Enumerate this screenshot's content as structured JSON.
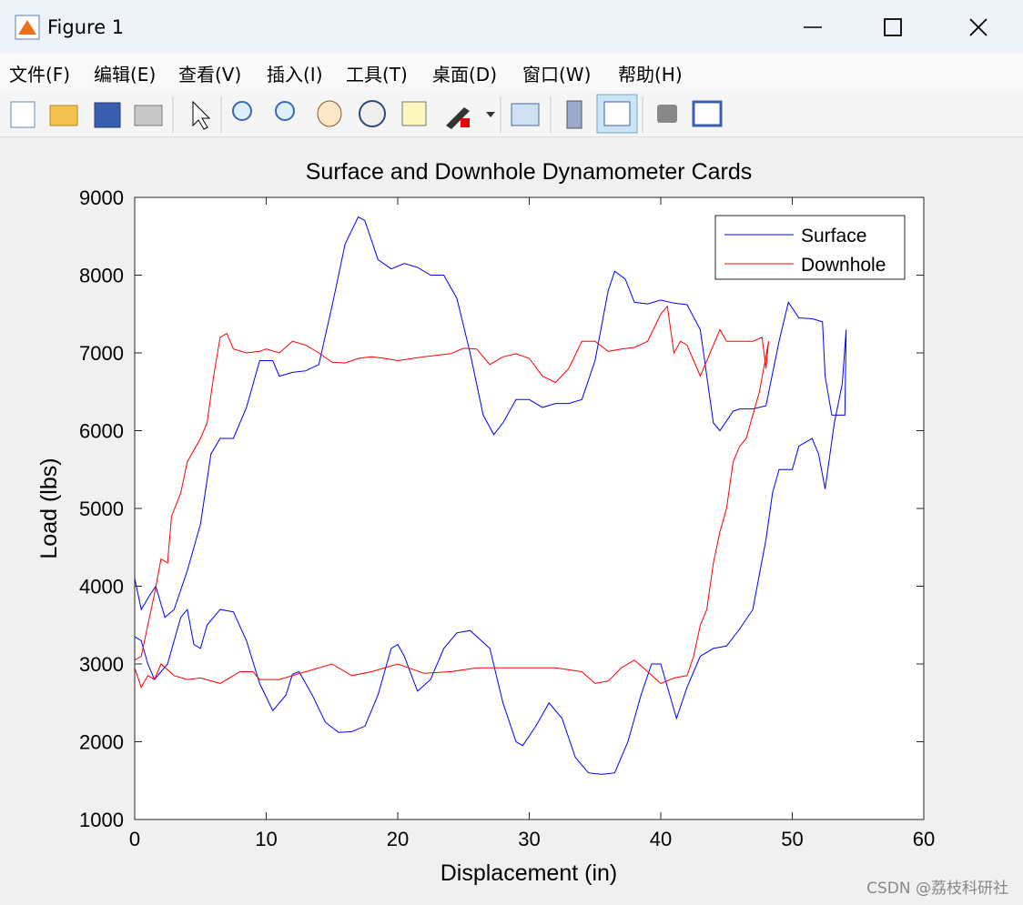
{
  "window": {
    "title": "Figure 1",
    "menu": [
      "文件(F)",
      "编辑(E)",
      "查看(V)",
      "插入(I)",
      "工具(T)",
      "桌面(D)",
      "窗口(W)",
      "帮助(H)"
    ]
  },
  "watermark": "CSDN @荔枝科研社",
  "chart_data": {
    "type": "line",
    "title": "Surface and Downhole Dynamometer Cards",
    "x_label": "Displacement (in)",
    "y_label": "Load (lbs)",
    "xlim": [
      0,
      60
    ],
    "xticks": [
      0,
      10,
      20,
      30,
      40,
      50,
      60
    ],
    "ylim": [
      1000,
      9000
    ],
    "yticks": [
      1000,
      2000,
      3000,
      4000,
      5000,
      6000,
      7000,
      8000,
      9000
    ],
    "grid": false,
    "legend": "upper right",
    "series": [
      {
        "name": "Surface",
        "color": "#0000ff",
        "x": [
          0,
          0.5,
          1.2,
          1.6,
          2.3,
          3,
          4,
          5,
          5.8,
          6.5,
          7.5,
          8.5,
          9.5,
          10.5,
          11,
          12,
          13,
          14,
          15,
          16,
          17,
          17.5,
          18.5,
          19.5,
          20.5,
          21.5,
          22.5,
          23.5,
          24.5,
          25.5,
          26.5,
          27.3,
          28,
          29,
          30,
          31,
          32,
          33,
          34,
          35,
          36,
          36.5,
          37.3,
          38,
          39,
          40,
          41,
          42,
          43,
          44,
          44.5,
          45.5,
          46,
          47,
          48,
          49,
          49.7,
          50.5,
          51.5,
          52.3,
          52.5,
          53,
          53.5,
          54,
          54.1,
          53.8,
          53.2,
          52.5,
          52,
          51.5,
          50.5,
          50,
          49.5,
          49,
          48.5,
          48,
          47,
          46,
          45,
          44,
          43,
          42,
          41.2,
          40,
          39.3,
          38.5,
          37.5,
          36.5,
          35.5,
          34.5,
          33.5,
          32.5,
          31.5,
          30.5,
          29.5,
          29,
          28,
          27,
          25.5,
          24.5,
          23.5,
          22.5,
          21.5,
          20.5,
          20,
          19.5,
          18.5,
          17.5,
          16.5,
          15.5,
          14.5,
          13.5,
          12.5,
          12,
          11.5,
          10.5,
          9.5,
          8.5,
          7.5,
          6.5,
          5.5,
          5,
          4.5,
          4,
          3.5,
          2.5,
          1.5,
          1,
          0.5,
          0
        ],
        "values": [
          4100,
          3700,
          3900,
          4000,
          3600,
          3700,
          4200,
          4800,
          5700,
          5900,
          5900,
          6300,
          6900,
          6900,
          6700,
          6750,
          6770,
          6850,
          7600,
          8400,
          8750,
          8700,
          8200,
          8080,
          8150,
          8100,
          8000,
          8000,
          7700,
          7000,
          6200,
          5950,
          6100,
          6400,
          6400,
          6300,
          6350,
          6350,
          6400,
          6900,
          7800,
          8050,
          7950,
          7650,
          7630,
          7680,
          7640,
          7620,
          7300,
          6100,
          6000,
          6250,
          6280,
          6280,
          6320,
          7150,
          7650,
          7450,
          7440,
          7400,
          6700,
          6200,
          6200,
          6200,
          7300,
          6600,
          6100,
          5250,
          5700,
          5900,
          5800,
          5500,
          5500,
          5500,
          5200,
          4600,
          3700,
          3450,
          3230,
          3200,
          3100,
          2700,
          2300,
          3000,
          3000,
          2600,
          2000,
          1600,
          1580,
          1600,
          1800,
          2300,
          2500,
          2200,
          1950,
          2000,
          2500,
          3200,
          3430,
          3400,
          3200,
          2800,
          2650,
          3100,
          3250,
          3200,
          2600,
          2200,
          2130,
          2120,
          2250,
          2600,
          2900,
          2870,
          2600,
          2400,
          2750,
          3300,
          3670,
          3700,
          3500,
          3200,
          3250,
          3700,
          3600,
          3000,
          2800,
          3000,
          3300,
          3350
        ]
      },
      {
        "name": "Downhole",
        "color": "#ff0000",
        "x": [
          0,
          0.5,
          1,
          1.5,
          2,
          2.5,
          2.8,
          3.5,
          4,
          5,
          5.5,
          6,
          6.5,
          7,
          7.5,
          8.5,
          9.5,
          10,
          11,
          12,
          13,
          14,
          15,
          16,
          17,
          18,
          19,
          20,
          22,
          24,
          25,
          26,
          27,
          28,
          29,
          30,
          31,
          32,
          33,
          34,
          35,
          36,
          37,
          38,
          39,
          40,
          40.5,
          41,
          41.5,
          42,
          43,
          43.5,
          44,
          44.5,
          45,
          46,
          47,
          47.7,
          48,
          48.2,
          47.5,
          47,
          46.5,
          46,
          45.5,
          45,
          44.5,
          44,
          43.5,
          43,
          42.5,
          42,
          41,
          40,
          39,
          38,
          37,
          36,
          35,
          34,
          32,
          30,
          28,
          26,
          24,
          22,
          20,
          18,
          16.5,
          15,
          13,
          11,
          9.5,
          9,
          8,
          6.5,
          5,
          4,
          3,
          2,
          1.5,
          1,
          0.5,
          0
        ],
        "values": [
          3050,
          3100,
          3500,
          3900,
          4350,
          4300,
          4900,
          5200,
          5600,
          5900,
          6100,
          6700,
          7200,
          7250,
          7050,
          7000,
          7020,
          7050,
          7000,
          7150,
          7100,
          7000,
          6880,
          6870,
          6930,
          6950,
          6930,
          6900,
          6950,
          6990,
          7060,
          7050,
          6850,
          6950,
          6990,
          6930,
          6700,
          6620,
          6800,
          7150,
          7150,
          7020,
          7050,
          7070,
          7150,
          7500,
          7600,
          7000,
          7150,
          7100,
          6700,
          6900,
          7100,
          7300,
          7150,
          7150,
          7150,
          7200,
          6800,
          7150,
          6500,
          6200,
          5900,
          5800,
          5600,
          5000,
          4700,
          4300,
          3700,
          3500,
          3100,
          2850,
          2820,
          2750,
          2900,
          3050,
          2950,
          2780,
          2750,
          2900,
          2950,
          2950,
          2950,
          2950,
          2900,
          2880,
          3000,
          2900,
          2850,
          3000,
          2900,
          2800,
          2800,
          2900,
          2900,
          2750,
          2820,
          2800,
          2850,
          3000,
          2800,
          2850,
          2700,
          2950
        ]
      }
    ]
  }
}
